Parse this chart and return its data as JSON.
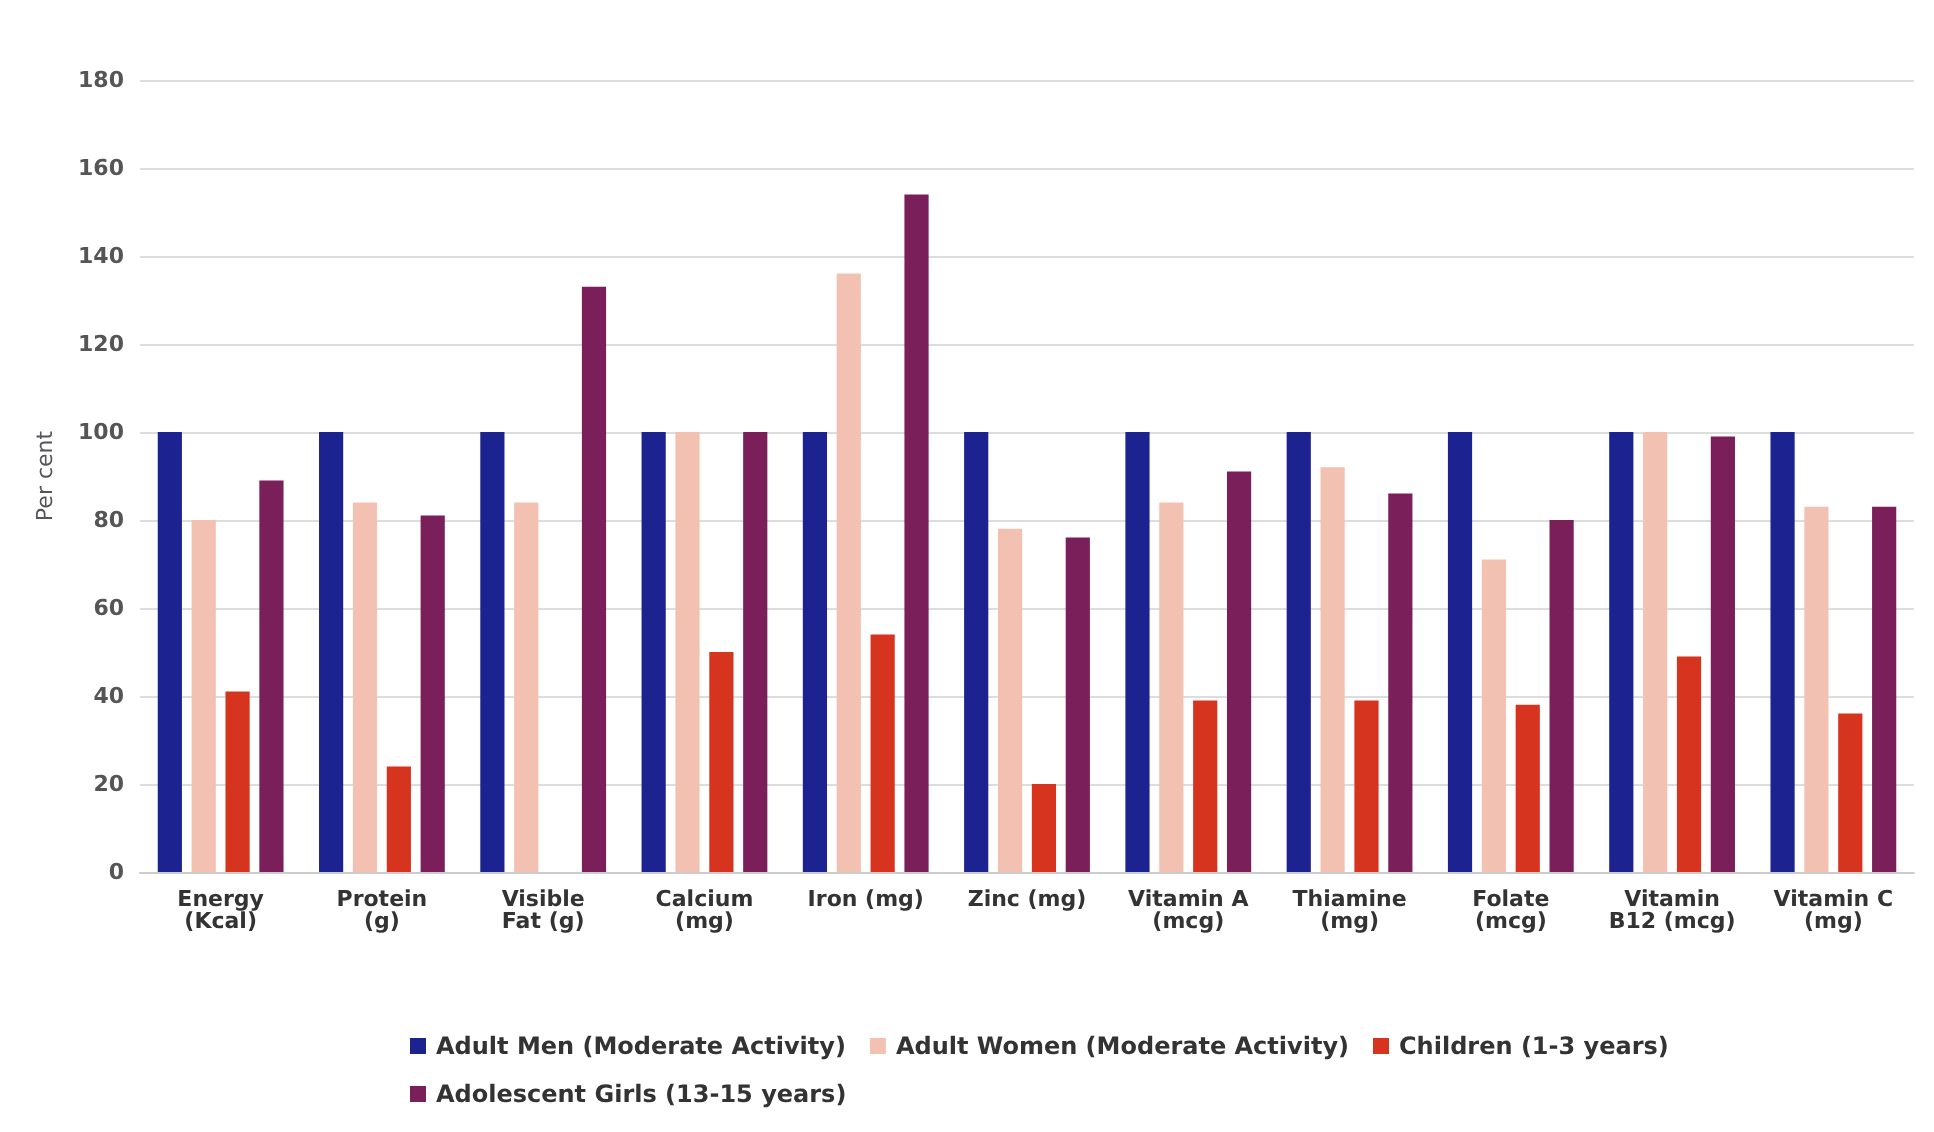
{
  "chart_data": {
    "type": "bar",
    "ylabel": "Per cent",
    "categories": [
      "Energy\n(Kcal)",
      "Protein\n(g)",
      "Visible\nFat (g)",
      "Calcium\n(mg)",
      "Iron (mg)",
      "Zinc (mg)",
      "Vitamin A\n(mcg)",
      "Thiamine\n(mg)",
      "Folate\n(mcg)",
      "Vitamin\nB12 (mcg)",
      "Vitamin C\n(mg)"
    ],
    "series": [
      {
        "name": "Adult Men (Moderate Activity)",
        "color": "#1c2290",
        "values": [
          100,
          100,
          100,
          100,
          100,
          100,
          100,
          100,
          100,
          100,
          100
        ]
      },
      {
        "name": "Adult Women (Moderate Activity)",
        "color": "#f3c1b2",
        "values": [
          80,
          84,
          84,
          100,
          136,
          78,
          84,
          92,
          71,
          100,
          83
        ]
      },
      {
        "name": "Children (1-3 years)",
        "color": "#d6341f",
        "values": [
          41,
          24,
          null,
          50,
          54,
          20,
          39,
          39,
          38,
          49,
          36
        ]
      },
      {
        "name": "Adolescent Girls (13-15 years)",
        "color": "#7a1f5a",
        "values": [
          89,
          81,
          133,
          100,
          154,
          76,
          91,
          86,
          80,
          99,
          83
        ]
      }
    ],
    "ylim": [
      0,
      180
    ],
    "yticks": [
      0,
      20,
      40,
      60,
      80,
      100,
      120,
      140,
      160,
      180
    ],
    "grid": "y",
    "legend": "bottom"
  }
}
